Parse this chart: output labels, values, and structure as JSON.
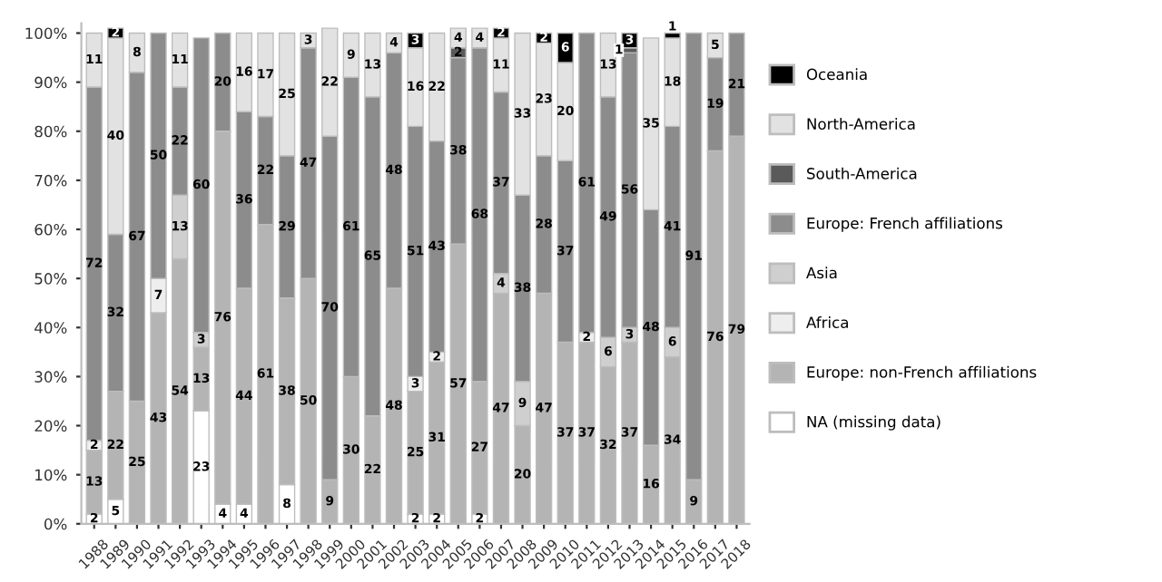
{
  "chart_data": {
    "type": "bar",
    "stacked": true,
    "data_labels": true,
    "legend": "right",
    "grid": false,
    "categories": [
      "1988",
      "1989",
      "1990",
      "1991",
      "1992",
      "1993",
      "1994",
      "1995",
      "1996",
      "1997",
      "1998",
      "1999",
      "2000",
      "2001",
      "2002",
      "2003",
      "2004",
      "2005",
      "2006",
      "2007",
      "2008",
      "2009",
      "2010",
      "2011",
      "2012",
      "2013",
      "2014",
      "2015",
      "2016",
      "2017",
      "2018"
    ],
    "ylim": [
      0,
      102
    ],
    "yticks": [
      {
        "value": 0,
        "label": "0%"
      },
      {
        "value": 10,
        "label": "10%"
      },
      {
        "value": 20,
        "label": "20%"
      },
      {
        "value": 30,
        "label": "30%"
      },
      {
        "value": 40,
        "label": "40%"
      },
      {
        "value": 50,
        "label": "50%"
      },
      {
        "value": 60,
        "label": "60%"
      },
      {
        "value": 70,
        "label": "70%"
      },
      {
        "value": 80,
        "label": "80%"
      },
      {
        "value": 90,
        "label": "90%"
      },
      {
        "value": 100,
        "label": "100%"
      }
    ],
    "series": [
      {
        "name": "NA (missing data)",
        "color": "#ffffff",
        "values": [
          2,
          5,
          null,
          null,
          null,
          23,
          4,
          4,
          null,
          8,
          null,
          null,
          null,
          null,
          null,
          2,
          2,
          null,
          2,
          null,
          null,
          null,
          null,
          null,
          null,
          null,
          null,
          null,
          null,
          null,
          null
        ]
      },
      {
        "name": "Europe: non-French affiliations",
        "color": "#b4b4b4",
        "values": [
          13,
          22,
          25,
          43,
          54,
          13,
          76,
          44,
          61,
          38,
          50,
          9,
          30,
          22,
          48,
          25,
          31,
          57,
          27,
          47,
          20,
          47,
          37,
          37,
          32,
          37,
          16,
          34,
          9,
          76,
          79
        ]
      },
      {
        "name": "Africa",
        "color": "#eeeeee",
        "values": [
          2,
          null,
          null,
          7,
          null,
          null,
          null,
          null,
          null,
          null,
          null,
          null,
          null,
          null,
          null,
          3,
          2,
          null,
          null,
          null,
          null,
          null,
          null,
          2,
          null,
          null,
          null,
          null,
          null,
          null,
          null
        ]
      },
      {
        "name": "Asia",
        "color": "#cfcfcf",
        "values": [
          null,
          null,
          null,
          null,
          13,
          3,
          null,
          null,
          null,
          null,
          null,
          null,
          null,
          null,
          null,
          null,
          null,
          null,
          null,
          4,
          9,
          null,
          null,
          null,
          6,
          3,
          null,
          6,
          null,
          null,
          null
        ]
      },
      {
        "name": "Europe: French affiliations",
        "color": "#8c8c8c",
        "values": [
          72,
          32,
          67,
          50,
          22,
          60,
          20,
          36,
          22,
          29,
          47,
          70,
          61,
          65,
          48,
          51,
          43,
          38,
          68,
          37,
          38,
          28,
          37,
          61,
          49,
          56,
          48,
          41,
          91,
          19,
          21
        ]
      },
      {
        "name": "South-America",
        "color": "#5a5a5a",
        "values": [
          null,
          null,
          null,
          null,
          null,
          null,
          null,
          null,
          null,
          null,
          null,
          null,
          null,
          null,
          null,
          null,
          null,
          2,
          null,
          null,
          null,
          null,
          null,
          null,
          null,
          1,
          null,
          null,
          null,
          null,
          null
        ]
      },
      {
        "name": "North-America",
        "color": "#e2e2e2",
        "values": [
          11,
          40,
          8,
          null,
          11,
          null,
          null,
          16,
          17,
          25,
          3,
          22,
          9,
          13,
          4,
          16,
          22,
          4,
          4,
          11,
          33,
          23,
          20,
          null,
          13,
          null,
          35,
          18,
          null,
          5,
          null
        ]
      },
      {
        "name": "Oceania",
        "color": "#000000",
        "values": [
          null,
          2,
          null,
          null,
          null,
          null,
          null,
          null,
          null,
          null,
          null,
          null,
          null,
          null,
          null,
          3,
          null,
          null,
          null,
          2,
          null,
          2,
          6,
          null,
          null,
          3,
          null,
          1,
          null,
          null,
          null
        ]
      }
    ]
  }
}
